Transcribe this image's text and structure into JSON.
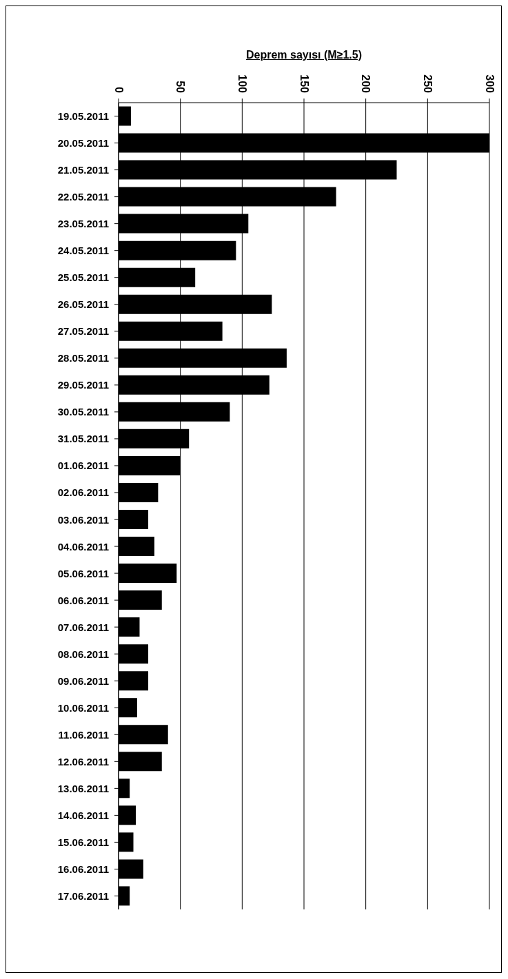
{
  "chart_data": {
    "type": "bar",
    "orientation": "horizontal",
    "xlabel": "Deprem sayısı (M≥1.5)",
    "categories": [
      "19.05.2011",
      "20.05.2011",
      "21.05.2011",
      "22.05.2011",
      "23.05.2011",
      "24.05.2011",
      "25.05.2011",
      "26.05.2011",
      "27.05.2011",
      "28.05.2011",
      "29.05.2011",
      "30.05.2011",
      "31.05.2011",
      "01.06.2011",
      "02.06.2011",
      "03.06.2011",
      "04.06.2011",
      "05.06.2011",
      "06.06.2011",
      "07.06.2011",
      "08.06.2011",
      "09.06.2011",
      "10.06.2011",
      "11.06.2011",
      "12.06.2011",
      "13.06.2011",
      "14.06.2011",
      "15.06.2011",
      "16.06.2011",
      "17.06.2011"
    ],
    "values": [
      10,
      300,
      225,
      176,
      105,
      95,
      62,
      124,
      84,
      136,
      122,
      90,
      57,
      50,
      32,
      24,
      29,
      47,
      35,
      17,
      24,
      24,
      15,
      40,
      35,
      9,
      14,
      12,
      20,
      9
    ],
    "color": "#000000",
    "xlim": [
      0,
      300
    ],
    "xticks": [
      0,
      50,
      100,
      150,
      200,
      250,
      300
    ],
    "grid": "x"
  }
}
